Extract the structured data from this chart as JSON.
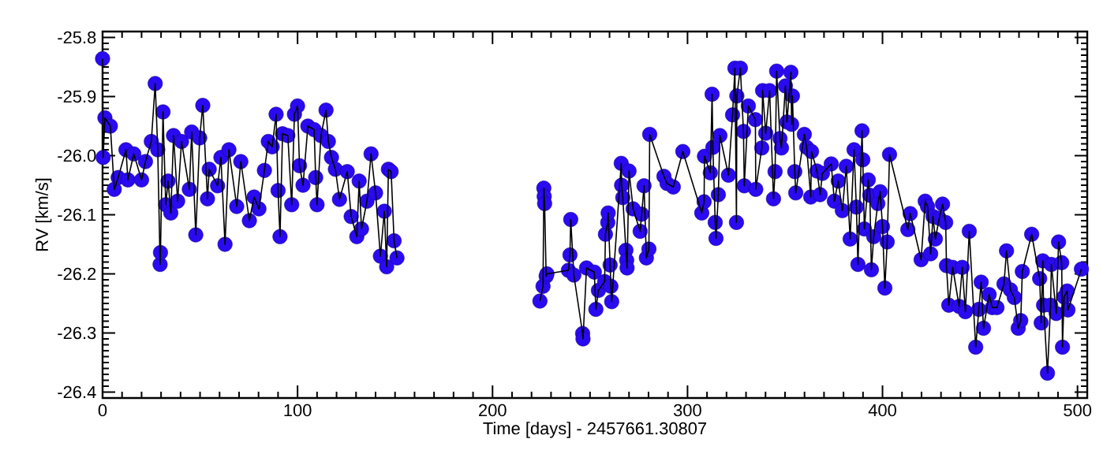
{
  "chart_data": {
    "type": "line",
    "xlabel": "Time [days] - 2457661.30807",
    "ylabel": "RV [km/s]",
    "xlim": [
      0,
      505
    ],
    "ylim": [
      -26.41,
      -25.79
    ],
    "xticks": [
      0,
      100,
      200,
      300,
      400,
      500
    ],
    "yticks": [
      -25.8,
      -25.9,
      {
        "value": -26,
        "label": "-26.0"
      },
      -26.1,
      -26.2,
      -26.3,
      -26.4
    ],
    "marker": "circle",
    "line_style": "solid",
    "series": [
      {
        "color": "#2a0af0",
        "x": [
          0,
          0.3,
          1.2,
          4,
          6,
          8,
          12,
          13,
          16,
          20,
          22,
          25,
          27,
          28.3,
          29.5,
          29.7,
          31,
          32.4,
          33.6,
          35,
          36.4,
          38.5,
          40.5,
          44.5,
          45.7,
          47.8,
          49.8,
          51.4,
          53.8,
          54.7,
          59,
          60.7,
          62.8,
          64.8,
          68.8,
          70.9,
          75.3,
          77.7,
          80.2,
          83,
          85,
          87,
          89,
          90,
          91,
          92.3,
          95,
          97,
          98.4,
          100,
          101,
          102.8,
          105.3,
          108.5,
          109.3,
          110,
          112,
          114.6,
          115.8,
          117.4,
          119.4,
          121.5,
          125.5,
          127.5,
          130.4,
          131.6,
          132.8,
          135.6,
          137.7,
          140,
          142.5,
          144.5,
          145.7,
          146.6,
          148,
          149.5,
          151,
          188,
          224.3,
          225.9,
          226.3,
          226.5,
          226.7,
          227.5,
          227.9,
          238.9,
          239.7,
          240.1,
          241.7,
          246.2,
          246.4,
          248.2,
          252.2,
          253,
          254.3,
          257.5,
          257.9,
          259.1,
          259.3,
          260.3,
          260.7,
          261.1,
          266,
          266.2,
          266.8,
          268.4,
          268.8,
          269,
          270,
          272.1,
          275.7,
          276.5,
          277.7,
          278.9,
          280.2,
          280.6,
          287.9,
          289.5,
          292.7,
          297.6,
          307.3,
          308.5,
          308.7,
          311.7,
          312.6,
          313,
          314.2,
          314.6,
          315.8,
          316.6,
          321,
          323.1,
          324.3,
          325.1,
          325.3,
          327.1,
          328.7,
          329.1,
          331.2,
          334.8,
          335,
          338.1,
          338.5,
          340.1,
          342.1,
          344.1,
          344.9,
          345.7,
          347.4,
          348.2,
          350.2,
          351,
          353,
          353.4,
          353.8,
          355,
          355.5,
          359.9,
          361.1,
          363.2,
          363.6,
          366.4,
          368,
          369.2,
          373.7,
          375.3,
          377.3,
          379.4,
          381.4,
          383.4,
          385.4,
          386.6,
          387.4,
          389.5,
          389.9,
          390.7,
          392.7,
          393.5,
          394.3,
          395.5,
          397.6,
          398.8,
          400,
          401.2,
          402.4,
          403.6,
          413,
          414.2,
          419.8,
          421.9,
          423.1,
          424.7,
          425.9,
          427.1,
          429.1,
          430.8,
          432.4,
          432.8,
          434,
          436,
          439.3,
          440.9,
          442.5,
          444.5,
          447.8,
          449.4,
          450.6,
          451.8,
          454.7,
          456.3,
          458.7,
          462.3,
          463.6,
          465.6,
          467.6,
          469.6,
          470.9,
          471.7,
          476.5,
          480.6,
          481.4,
          482.2,
          482.6,
          484.6,
          486.2,
          486.6,
          489.1,
          490.3,
          491.9,
          492.3,
          493.1,
          494.7,
          495.1,
          502
        ],
        "values": [
          -25.836,
          -26.003,
          -25.936,
          -25.95,
          -26.057,
          -26.037,
          -25.99,
          -26.041,
          -25.997,
          -26.041,
          -26.01,
          -25.976,
          -25.878,
          -25.99,
          -26.184,
          -26.164,
          -25.926,
          -26.083,
          -26.043,
          -26.097,
          -25.966,
          -26.077,
          -25.976,
          -26.057,
          -25.96,
          -26.134,
          -25.97,
          -25.915,
          -26.073,
          -26.023,
          -26.051,
          -26.003,
          -26.15,
          -25.99,
          -26.086,
          -26.01,
          -26.11,
          -26.07,
          -26.09,
          -26.025,
          -25.976,
          -25.985,
          -25.93,
          -26.059,
          -26.137,
          -25.963,
          -25.966,
          -26.083,
          -25.93,
          -25.916,
          -26.017,
          -26.05,
          -25.95,
          -25.956,
          -26.037,
          -26.083,
          -25.966,
          -25.923,
          -25.976,
          -26.003,
          -26.023,
          -26.074,
          -26.027,
          -26.103,
          -26.137,
          -26.043,
          -26.124,
          -26.077,
          -25.997,
          -26.063,
          -26.17,
          -26.094,
          -26.188,
          -26.023,
          -26.027,
          -26.144,
          -26.173,
          null,
          -26.246,
          -26.221,
          -26.055,
          -26.069,
          -26.081,
          -26.204,
          -26.2,
          -26.194,
          -26.168,
          -26.108,
          -26.202,
          -26.301,
          -26.31,
          -26.19,
          -26.197,
          -26.26,
          -26.228,
          -26.213,
          -26.133,
          -26.113,
          -26.097,
          -26.185,
          -26.221,
          -26.247,
          -26.013,
          -26.05,
          -26.071,
          -26.16,
          -26.177,
          -26.19,
          -26.026,
          -26.09,
          -26.128,
          -26.099,
          -26.051,
          -26.173,
          -26.158,
          -25.964,
          -26.035,
          -26.047,
          -26.053,
          -25.993,
          -26.097,
          -26.078,
          -26.001,
          -26.029,
          -25.896,
          -25.986,
          -26.113,
          -26.14,
          -26.066,
          -25.966,
          -26.033,
          -25.931,
          -25.852,
          -26.113,
          -25.899,
          -25.852,
          -25.959,
          -26.051,
          -25.916,
          -25.939,
          -26.057,
          -25.987,
          -25.89,
          -25.962,
          -25.89,
          -26.073,
          -26.027,
          -25.857,
          -25.971,
          -25.987,
          -25.882,
          -25.943,
          -25.859,
          -25.947,
          -25.899,
          -26.027,
          -26.063,
          -25.964,
          -25.986,
          -26.07,
          -25.993,
          -26.026,
          -26.066,
          -26.03,
          -26.014,
          -26.077,
          -26.043,
          -26.093,
          -26.018,
          -26.141,
          -25.99,
          -26.087,
          -26.184,
          -25.958,
          -26.007,
          -26.124,
          -26.041,
          -26.067,
          -26.193,
          -26.137,
          -26.081,
          -26.061,
          -26.12,
          -26.224,
          -26.146,
          -25.998,
          -26.125,
          -26.098,
          -26.176,
          -26.077,
          -26.086,
          -26.166,
          -26.103,
          -26.141,
          -26.106,
          -26.082,
          -26.113,
          -26.186,
          -26.253,
          -26.189,
          -26.255,
          -26.189,
          -26.264,
          -26.128,
          -26.324,
          -26.26,
          -26.214,
          -26.292,
          -26.235,
          -26.257,
          -26.257,
          -26.217,
          -26.161,
          -26.227,
          -26.24,
          -26.292,
          -26.279,
          -26.196,
          -26.133,
          -26.208,
          -26.283,
          -26.178,
          -26.253,
          -26.368,
          -26.253,
          -26.184,
          -26.267,
          -26.146,
          -26.181,
          -26.324,
          -26.239,
          -26.229,
          -26.261,
          -26.192
        ]
      }
    ]
  }
}
